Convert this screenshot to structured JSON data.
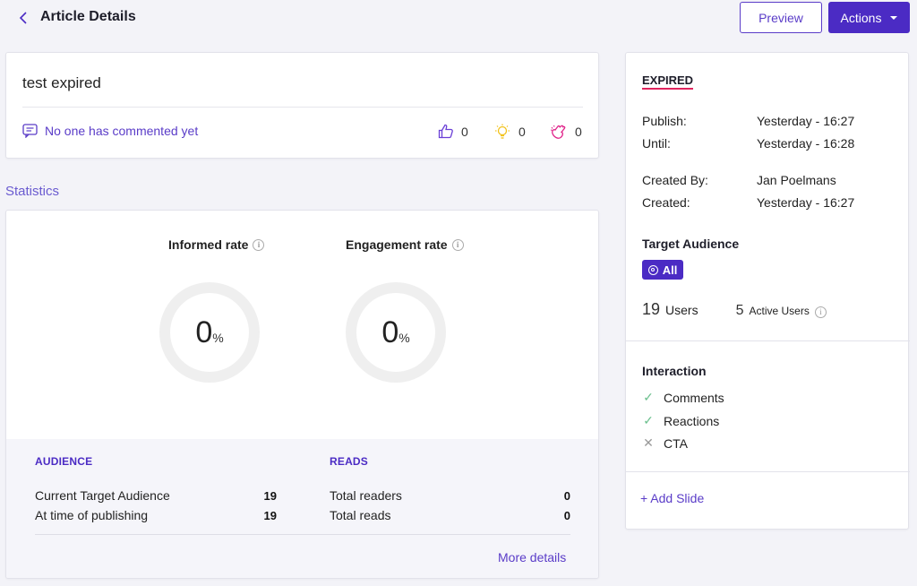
{
  "header": {
    "title": "Article Details",
    "preview_label": "Preview",
    "actions_label": "Actions"
  },
  "article": {
    "title": "test expired",
    "comments_text": "No one has commented yet",
    "reactions": [
      {
        "icon": "thumbs-up-icon",
        "count": "0",
        "color": "#6a3fd6"
      },
      {
        "icon": "lightbulb-icon",
        "count": "0",
        "color": "#f2c21b"
      },
      {
        "icon": "clap-hands-icon",
        "count": "0",
        "color": "#e0248a"
      }
    ]
  },
  "statistics": {
    "heading": "Statistics",
    "informed_rate": {
      "label": "Informed rate",
      "value": "0",
      "unit": "%"
    },
    "engagement_rate": {
      "label": "Engagement rate",
      "value": "0",
      "unit": "%"
    },
    "audience": {
      "heading": "AUDIENCE",
      "rows": [
        {
          "label": "Current Target Audience",
          "value": "19"
        },
        {
          "label": "At time of publishing",
          "value": "19"
        }
      ]
    },
    "reads": {
      "heading": "READS",
      "rows": [
        {
          "label": "Total readers",
          "value": "0"
        },
        {
          "label": "Total reads",
          "value": "0"
        }
      ]
    },
    "more_details": "More details"
  },
  "sidebar": {
    "status": "EXPIRED",
    "fields": [
      {
        "key": "Publish:",
        "value": "Yesterday - 16:27"
      },
      {
        "key": "Until:",
        "value": "Yesterday - 16:28"
      },
      {
        "key": "Created By:",
        "value": "Jan Poelmans"
      },
      {
        "key": "Created:",
        "value": "Yesterday - 16:27"
      }
    ],
    "target_audience": {
      "heading": "Target Audience",
      "badge": "All",
      "users_count": "19",
      "users_label": "Users",
      "active_count": "5",
      "active_label": "Active Users"
    },
    "interaction": {
      "heading": "Interaction",
      "items": [
        {
          "label": "Comments",
          "enabled": true
        },
        {
          "label": "Reactions",
          "enabled": true
        },
        {
          "label": "CTA",
          "enabled": false
        }
      ]
    },
    "add_slide": "+ Add Slide"
  },
  "colors": {
    "accent": "#4b2bc4",
    "status_underline": "#e0245e",
    "check": "#6cc08e"
  }
}
